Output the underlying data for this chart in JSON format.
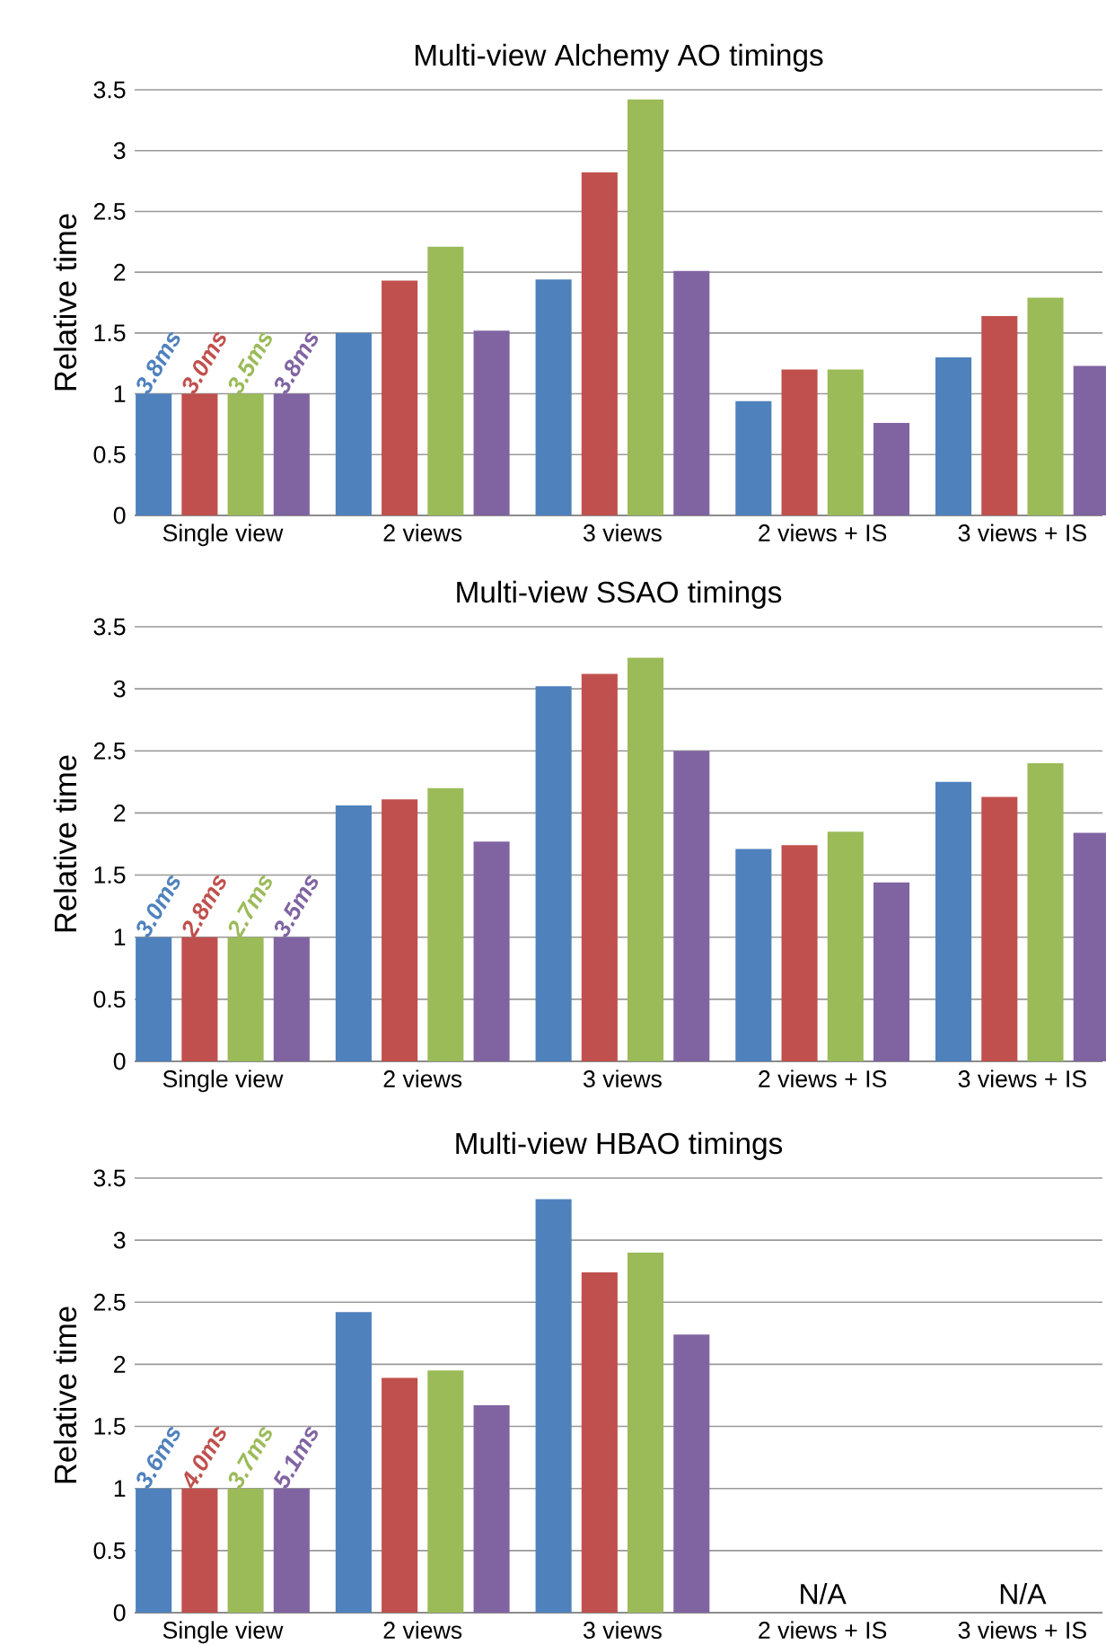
{
  "chart_data": [
    {
      "type": "bar",
      "title": "Multi-view Alchemy AO timings",
      "ylabel": "Relative time",
      "categories": [
        "Single view",
        "2 views",
        "3 views",
        "2 views + IS",
        "3 views + IS"
      ],
      "series": [
        {
          "color": "#4f81bd",
          "values": [
            1,
            1.5,
            1.94,
            0.94,
            1.3
          ]
        },
        {
          "color": "#c0504d",
          "values": [
            1,
            1.93,
            2.82,
            1.2,
            1.64
          ]
        },
        {
          "color": "#9bbb59",
          "values": [
            1,
            2.21,
            3.42,
            1.2,
            1.79
          ]
        },
        {
          "color": "#8064a2",
          "values": [
            1,
            1.52,
            2.01,
            0.76,
            1.23
          ]
        }
      ],
      "annotations": [
        {
          "text": "3.8ms",
          "x": "Single view",
          "y": 1
        },
        {
          "text": "3.0ms",
          "x": "Single view",
          "y": 1
        },
        {
          "text": "3.5ms",
          "x": "Single view",
          "y": 1
        },
        {
          "text": "3.8ms",
          "x": "Single view",
          "y": 1
        }
      ],
      "ylim": [
        0,
        3.5
      ],
      "yticks": [
        0,
        0.5,
        1,
        1.5,
        2,
        2.5,
        3,
        3.5
      ],
      "grid": "y"
    },
    {
      "type": "bar",
      "title": "Multi-view SSAO timings",
      "ylabel": "Relative time",
      "categories": [
        "Single view",
        "2 views",
        "3 views",
        "2 views + IS",
        "3 views + IS"
      ],
      "series": [
        {
          "color": "#4f81bd",
          "values": [
            1,
            2.06,
            3.02,
            1.71,
            2.25
          ]
        },
        {
          "color": "#c0504d",
          "values": [
            1,
            2.11,
            3.12,
            1.74,
            2.13
          ]
        },
        {
          "color": "#9bbb59",
          "values": [
            1,
            2.2,
            3.25,
            1.85,
            2.4
          ]
        },
        {
          "color": "#8064a2",
          "values": [
            1,
            1.77,
            2.5,
            1.44,
            1.84
          ]
        }
      ],
      "annotations": [
        {
          "text": "3.0ms",
          "x": "Single view",
          "y": 1
        },
        {
          "text": "2.8ms",
          "x": "Single view",
          "y": 1
        },
        {
          "text": "2.7ms",
          "x": "Single view",
          "y": 1
        },
        {
          "text": "3.5ms",
          "x": "Single view",
          "y": 1
        }
      ],
      "ylim": [
        0,
        3.5
      ],
      "yticks": [
        0,
        0.5,
        1,
        1.5,
        2,
        2.5,
        3,
        3.5
      ],
      "grid": "y"
    },
    {
      "type": "bar",
      "title": "Multi-view HBAO timings",
      "ylabel": "Relative time",
      "categories": [
        "Single view",
        "2 views",
        "3 views",
        "2 views + IS",
        "3 views + IS"
      ],
      "series": [
        {
          "color": "#4f81bd",
          "values": [
            1,
            2.42,
            3.33,
            null,
            null
          ]
        },
        {
          "color": "#c0504d",
          "values": [
            1,
            1.89,
            2.74,
            null,
            null
          ]
        },
        {
          "color": "#9bbb59",
          "values": [
            1,
            1.95,
            2.9,
            null,
            null
          ]
        },
        {
          "color": "#8064a2",
          "values": [
            1,
            1.67,
            2.24,
            null,
            null
          ]
        }
      ],
      "annotations": [
        {
          "text": "3.6ms",
          "x": "Single view",
          "y": 1
        },
        {
          "text": "4.0ms",
          "x": "Single view",
          "y": 1
        },
        {
          "text": "3.7ms",
          "x": "Single view",
          "y": 1
        },
        {
          "text": "5.1ms",
          "x": "Single view",
          "y": 1
        },
        "N/A",
        "N/A"
      ],
      "ylim": [
        0,
        3.5
      ],
      "yticks": [
        0,
        0.5,
        1,
        1.5,
        2,
        2.5,
        3,
        3.5
      ],
      "grid": "y"
    }
  ]
}
